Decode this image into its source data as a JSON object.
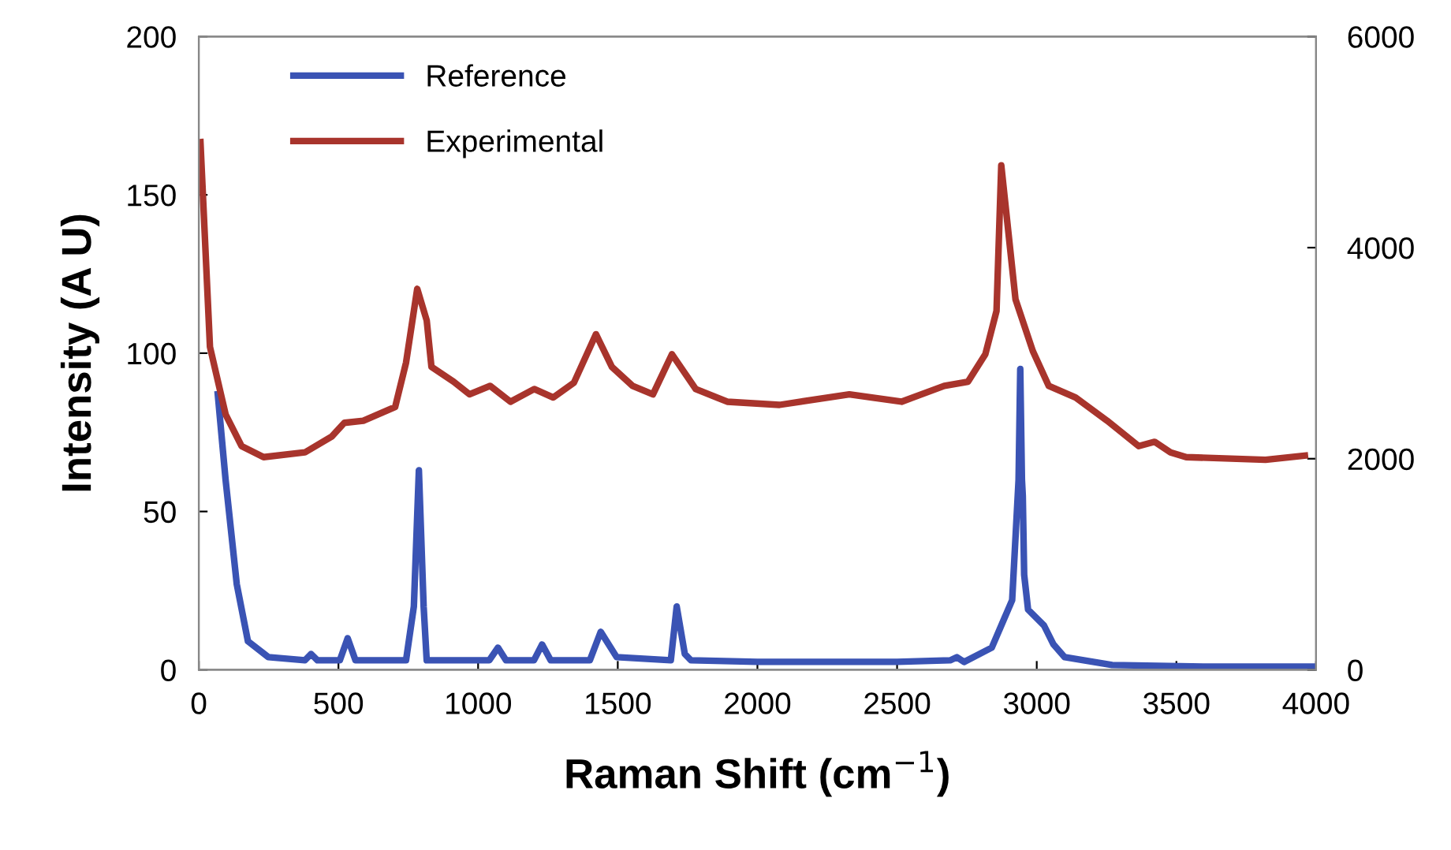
{
  "chart_data": {
    "type": "line",
    "xlabel": "Raman Shift (cm$^{−1}$)",
    "ylabel": "Intensity (A U)",
    "xlim": [
      0,
      4000
    ],
    "xticks": [
      0,
      500,
      1000,
      1500,
      2000,
      2500,
      3000,
      3500,
      4000
    ],
    "ylim": [
      0,
      200
    ],
    "yticks": [
      0,
      50,
      100,
      150,
      200
    ],
    "y2lim": [
      0,
      6000
    ],
    "y2ticks": [
      0,
      2000,
      4000,
      6000
    ],
    "grid": false,
    "legend": "top left",
    "marker": "none",
    "line_style": "solid",
    "series": [
      {
        "name": "Reference",
        "color": "#3a53b4",
        "x": [
          68,
          96,
          136,
          176,
          249,
          380,
          402,
          425,
          459,
          505,
          533,
          561,
          742,
          770,
          788,
          805,
          816,
          1040,
          1071,
          1100,
          1200,
          1229,
          1260,
          1400,
          1439,
          1496,
          1690,
          1711,
          1740,
          1762,
          2000,
          2500,
          2690,
          2714,
          2740,
          2839,
          2912,
          2935,
          2941,
          2947,
          2950,
          2955,
          2969,
          3026,
          3060,
          3100,
          3270,
          3600,
          4000
        ],
        "values": [
          87,
          60,
          27,
          9,
          4,
          3,
          5,
          3,
          3,
          3,
          10,
          3,
          3,
          20,
          63,
          20,
          3,
          3,
          7,
          3,
          3,
          8,
          3,
          3,
          12,
          4,
          3,
          20,
          5,
          3,
          2.5,
          2.5,
          3,
          4,
          2.5,
          7,
          22,
          60,
          95,
          60,
          55,
          30,
          19,
          14,
          8,
          4,
          1.5,
          1,
          1
        ]
      },
      {
        "name": "Experimental",
        "color": "#a8342c",
        "axis": "y2",
        "x": [
          6,
          40,
          96,
          153,
          232,
          380,
          476,
          521,
          589,
          703,
          742,
          782,
          816,
          833,
          912,
          969,
          1043,
          1116,
          1201,
          1269,
          1343,
          1422,
          1479,
          1553,
          1626,
          1694,
          1779,
          1892,
          2079,
          2329,
          2516,
          2669,
          2754,
          2816,
          2856,
          2873,
          2924,
          2986,
          3043,
          3139,
          3252,
          3365,
          3422,
          3479,
          3535,
          3819,
          3960
        ],
        "values": [
          5000,
          3060,
          2420,
          2120,
          2015,
          2060,
          2210,
          2340,
          2360,
          2490,
          2910,
          3610,
          3310,
          2870,
          2730,
          2610,
          2690,
          2540,
          2660,
          2580,
          2720,
          3180,
          2870,
          2690,
          2610,
          2990,
          2660,
          2540,
          2510,
          2610,
          2540,
          2690,
          2730,
          2990,
          3400,
          4780,
          3510,
          3020,
          2690,
          2580,
          2360,
          2120,
          2160,
          2060,
          2015,
          1990,
          2030
        ]
      }
    ]
  }
}
